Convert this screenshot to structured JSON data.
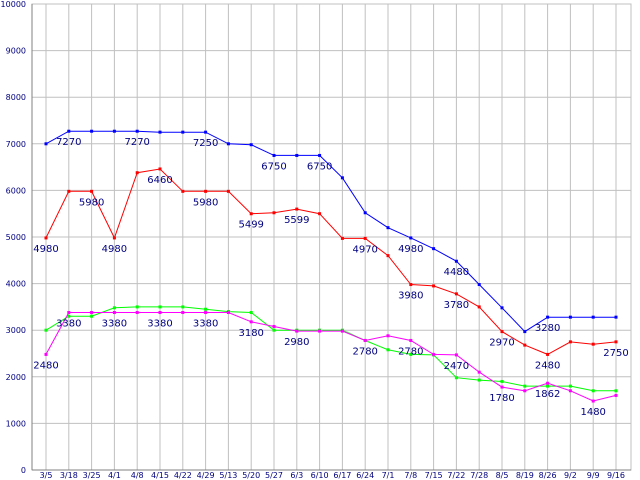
{
  "chart_data": {
    "type": "line",
    "categories": [
      "3/5",
      "3/18",
      "3/25",
      "4/1",
      "4/8",
      "4/15",
      "4/22",
      "4/29",
      "5/13",
      "5/20",
      "5/27",
      "6/3",
      "6/10",
      "6/17",
      "6/24",
      "7/1",
      "7/8",
      "7/15",
      "7/22",
      "7/28",
      "8/5",
      "8/19",
      "8/26",
      "9/2",
      "9/9",
      "9/16"
    ],
    "ylim": [
      0,
      10000
    ],
    "yticks": [
      "0",
      "1000",
      "2000",
      "3000",
      "4000",
      "5000",
      "6000",
      "7000",
      "8000",
      "9000",
      "10000"
    ],
    "grid": true,
    "series": [
      {
        "color": "#0000ff",
        "values": [
          7000,
          7270,
          7270,
          7270,
          7270,
          7250,
          7250,
          7250,
          7000,
          6980,
          6750,
          6750,
          6750,
          6270,
          5520,
          5200,
          4980,
          4750,
          4480,
          3980,
          3480,
          2970,
          3280,
          3280,
          3280,
          3280
        ]
      },
      {
        "color": "#ff0000",
        "values": [
          4980,
          5980,
          5980,
          4980,
          6380,
          6460,
          5980,
          5980,
          5980,
          5499,
          5520,
          5599,
          5500,
          4970,
          4970,
          4600,
          3980,
          3950,
          3780,
          3500,
          2970,
          2680,
          2480,
          2750,
          2700,
          2750
        ]
      },
      {
        "color": "#00ff00",
        "values": [
          3000,
          3300,
          3300,
          3480,
          3500,
          3500,
          3500,
          3450,
          3400,
          3380,
          3000,
          3000,
          3000,
          3000,
          2780,
          2580,
          2480,
          2470,
          1980,
          1930,
          1900,
          1800,
          1800,
          1800,
          1700,
          1700
        ]
      },
      {
        "color": "#ff00ff",
        "values": [
          2480,
          3380,
          3380,
          3380,
          3380,
          3380,
          3380,
          3380,
          3380,
          3180,
          3080,
          2980,
          2980,
          2980,
          2780,
          2880,
          2780,
          2480,
          2470,
          2100,
          1780,
          1700,
          1862,
          1700,
          1480,
          1600
        ]
      }
    ],
    "labels": [
      {
        "series": 0,
        "i": 1,
        "text": "7270"
      },
      {
        "series": 0,
        "i": 4,
        "text": "7270"
      },
      {
        "series": 0,
        "i": 7,
        "text": "7250"
      },
      {
        "series": 0,
        "i": 10,
        "text": "6750"
      },
      {
        "series": 0,
        "i": 12,
        "text": "6750"
      },
      {
        "series": 0,
        "i": 16,
        "text": "4980"
      },
      {
        "series": 0,
        "i": 18,
        "text": "4480"
      },
      {
        "series": 0,
        "i": 22,
        "text": "3280"
      },
      {
        "series": 1,
        "i": 0,
        "text": "4980"
      },
      {
        "series": 1,
        "i": 2,
        "text": "5980"
      },
      {
        "series": 1,
        "i": 3,
        "text": "4980"
      },
      {
        "series": 1,
        "i": 5,
        "text": "6460"
      },
      {
        "series": 1,
        "i": 7,
        "text": "5980"
      },
      {
        "series": 1,
        "i": 9,
        "text": "5499"
      },
      {
        "series": 1,
        "i": 11,
        "text": "5599"
      },
      {
        "series": 1,
        "i": 14,
        "text": "4970"
      },
      {
        "series": 1,
        "i": 16,
        "text": "3980"
      },
      {
        "series": 1,
        "i": 18,
        "text": "3780"
      },
      {
        "series": 1,
        "i": 20,
        "text": "2970"
      },
      {
        "series": 1,
        "i": 22,
        "text": "2480"
      },
      {
        "series": 1,
        "i": 25,
        "text": "2750"
      },
      {
        "series": 3,
        "i": 0,
        "text": "2480"
      },
      {
        "series": 3,
        "i": 1,
        "text": "3380"
      },
      {
        "series": 3,
        "i": 3,
        "text": "3380"
      },
      {
        "series": 3,
        "i": 5,
        "text": "3380"
      },
      {
        "series": 3,
        "i": 7,
        "text": "3380"
      },
      {
        "series": 3,
        "i": 9,
        "text": "3180"
      },
      {
        "series": 3,
        "i": 11,
        "text": "2980"
      },
      {
        "series": 3,
        "i": 14,
        "text": "2780"
      },
      {
        "series": 3,
        "i": 16,
        "text": "2780"
      },
      {
        "series": 3,
        "i": 18,
        "text": "2470"
      },
      {
        "series": 3,
        "i": 20,
        "text": "1780"
      },
      {
        "series": 3,
        "i": 22,
        "text": "1862"
      },
      {
        "series": 3,
        "i": 24,
        "text": "1480"
      }
    ]
  }
}
